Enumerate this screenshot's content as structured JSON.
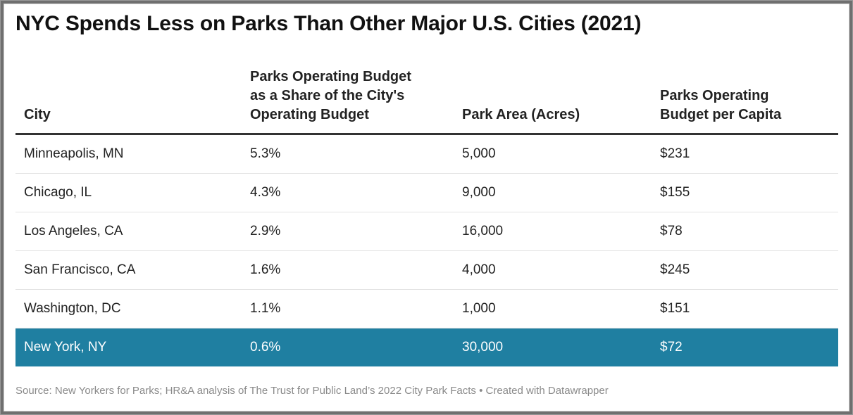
{
  "title": "NYC Spends Less on Parks Than Other Major U.S. Cities (2021)",
  "chart_data": {
    "type": "table",
    "title": "NYC Spends Less on Parks Than Other Major U.S. Cities (2021)",
    "columns": [
      {
        "lines": [
          "City"
        ]
      },
      {
        "lines": [
          "Parks Operating Budget",
          "as a Share of the City's",
          "Operating Budget"
        ]
      },
      {
        "lines": [
          "Park Area (Acres)"
        ]
      },
      {
        "lines": [
          "Parks Operating",
          "Budget per Capita"
        ]
      }
    ],
    "rows": [
      [
        "Minneapolis, MN",
        "5.3%",
        "5,000",
        "$231"
      ],
      [
        "Chicago, IL",
        "4.3%",
        "9,000",
        "$155"
      ],
      [
        "Los Angeles, CA",
        "2.9%",
        "16,000",
        "$78"
      ],
      [
        "San Francisco, CA",
        "1.6%",
        "4,000",
        "$245"
      ],
      [
        "Washington, DC",
        "1.1%",
        "1,000",
        "$151"
      ],
      [
        "New York, NY",
        "0.6%",
        "30,000",
        "$72"
      ]
    ],
    "highlighted_row": 5,
    "highlight_color": "#1f7fa1"
  },
  "footer": "Source: New Yorkers for Parks; HR&A analysis of The Trust for Public Land’s 2022 City Park Facts • Created with Datawrapper"
}
